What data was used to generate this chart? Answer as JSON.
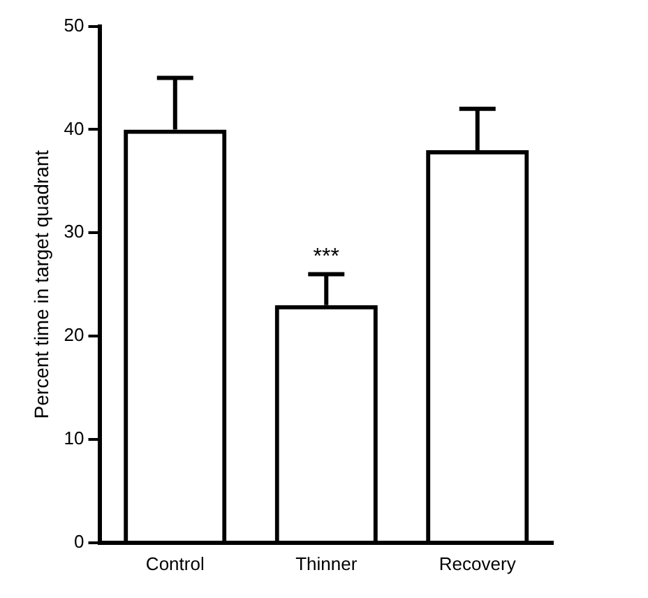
{
  "chart_data": {
    "type": "bar",
    "ylabel": "Percent time in target quadrant",
    "categories": [
      "Control",
      "Thinner",
      "Recovery"
    ],
    "values": [
      40,
      23,
      38
    ],
    "errors": [
      [
        40,
        45
      ],
      [
        23,
        26
      ],
      [
        38,
        42
      ]
    ],
    "color": "#000000",
    "ylim": [
      0,
      50
    ],
    "yticks": [
      0,
      10,
      20,
      30,
      40,
      50
    ],
    "annotations": [
      {
        "text": "***",
        "x": "Thinner",
        "y": 26
      }
    ]
  }
}
